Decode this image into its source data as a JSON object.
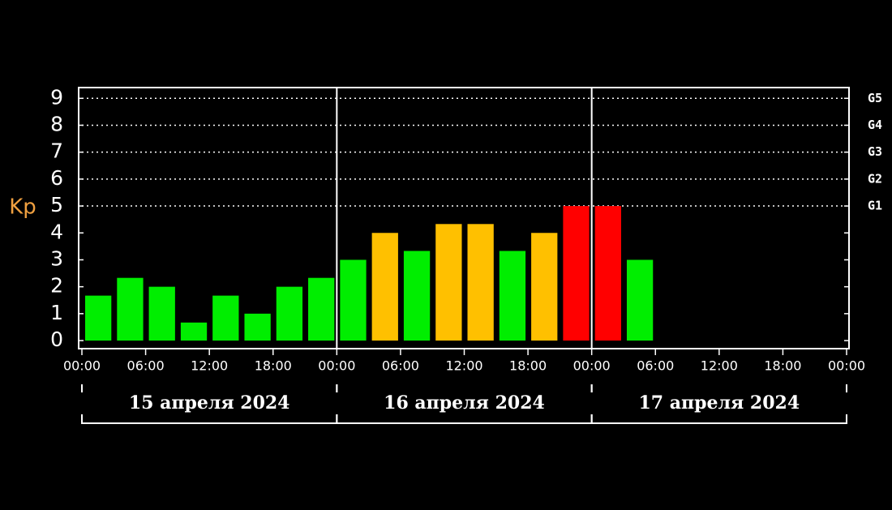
{
  "chart_data": {
    "type": "bar",
    "y_label": "Kp",
    "x": [
      0,
      3,
      6,
      9,
      12,
      15,
      18,
      21,
      24,
      27,
      30,
      33,
      36,
      39,
      42,
      45,
      48,
      51
    ],
    "values": [
      1.67,
      2.33,
      2,
      0.67,
      1.67,
      1,
      2,
      2.33,
      3,
      4,
      3.33,
      4.33,
      4.33,
      3.33,
      4,
      5,
      5,
      3
    ],
    "colors": [
      "#00ee00",
      "#00ee00",
      "#00ee00",
      "#00ee00",
      "#00ee00",
      "#00ee00",
      "#00ee00",
      "#00ee00",
      "#00ee00",
      "#ffc000",
      "#00ee00",
      "#ffc000",
      "#ffc000",
      "#00ee00",
      "#ffc000",
      "#ff0000",
      "#ff0000",
      "#00ee00"
    ],
    "xlim": [
      0,
      72
    ],
    "xticks": [
      {
        "value": 0,
        "label": "00:00"
      },
      {
        "value": 6,
        "label": "06:00"
      },
      {
        "value": 12,
        "label": "12:00"
      },
      {
        "value": 18,
        "label": "18:00"
      },
      {
        "value": 24,
        "label": "00:00"
      },
      {
        "value": 30,
        "label": "06:00"
      },
      {
        "value": 36,
        "label": "12:00"
      },
      {
        "value": 42,
        "label": "18:00"
      },
      {
        "value": 48,
        "label": "00:00"
      },
      {
        "value": 54,
        "label": "06:00"
      },
      {
        "value": 60,
        "label": "12:00"
      },
      {
        "value": 66,
        "label": "18:00"
      },
      {
        "value": 72,
        "label": "00:00"
      }
    ],
    "ylim": [
      -0.3,
      9.4
    ],
    "yticks": [
      0,
      1,
      2,
      3,
      4,
      5,
      6,
      7,
      8,
      9
    ],
    "storm_levels": [
      {
        "value": 5,
        "label": "G1"
      },
      {
        "value": 6,
        "label": "G2"
      },
      {
        "value": 7,
        "label": "G3"
      },
      {
        "value": 8,
        "label": "G4"
      },
      {
        "value": 9,
        "label": "G5"
      }
    ],
    "days": [
      {
        "label": "15 апреля 2024",
        "start": 0,
        "end": 24
      },
      {
        "label": "16 апреля 2024",
        "start": 24,
        "end": 48
      },
      {
        "label": "17 апреля 2024",
        "start": 48,
        "end": 72
      }
    ]
  }
}
